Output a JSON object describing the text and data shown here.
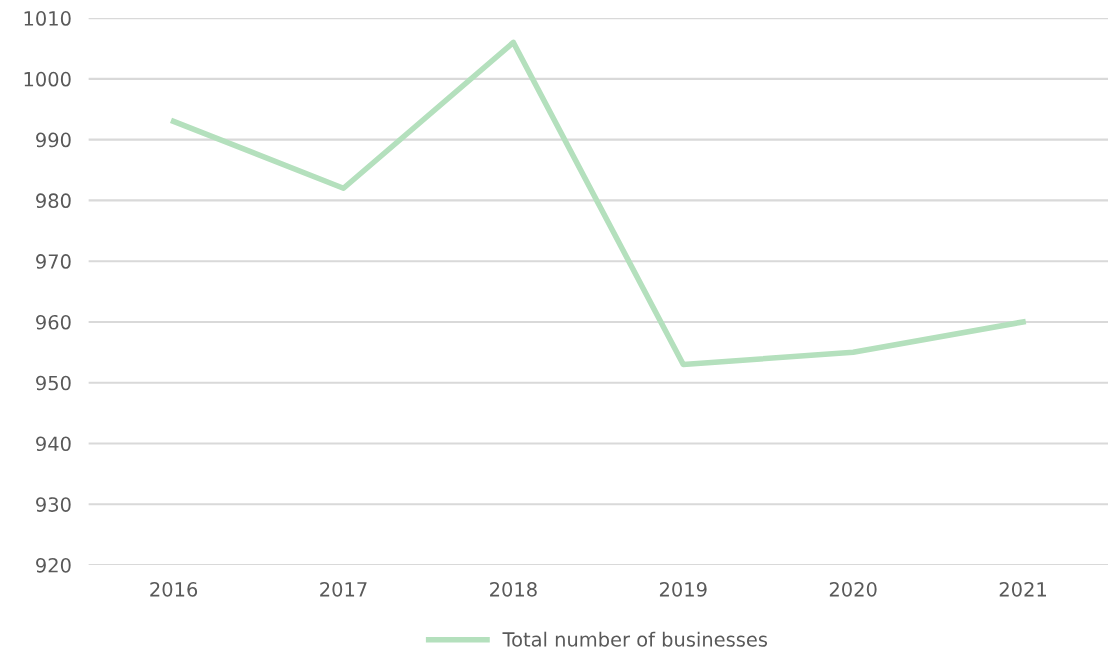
{
  "chart_data": {
    "type": "line",
    "categories": [
      "2016",
      "2017",
      "2018",
      "2019",
      "2020",
      "2021"
    ],
    "series": [
      {
        "name": "Total number of businesses",
        "color": "#b4e0bd",
        "values": [
          993,
          982,
          1006,
          953,
          955,
          960
        ]
      }
    ],
    "ylim": [
      920,
      1010
    ],
    "yticks": [
      920,
      930,
      940,
      950,
      960,
      970,
      980,
      990,
      1000,
      1010
    ],
    "grid": "y",
    "legend": "bottom",
    "marker": "none",
    "line_style": "solid"
  }
}
